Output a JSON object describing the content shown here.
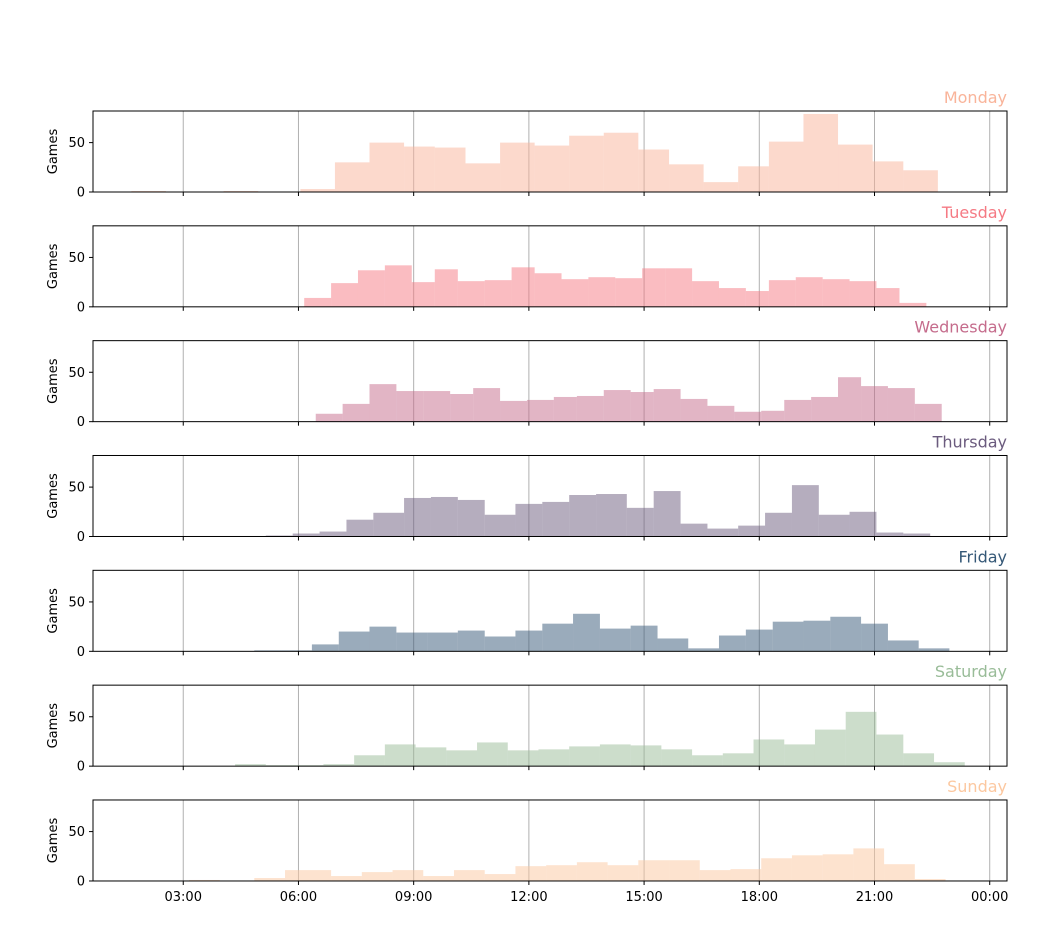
{
  "chart_data": {
    "type": "bar",
    "subtype": "histogram-small-multiples",
    "shared_x_axis": true,
    "x_tick_labels": [
      "03:00",
      "06:00",
      "09:00",
      "12:00",
      "15:00",
      "18:00",
      "21:00",
      "00:00"
    ],
    "x_tick_hours": [
      3,
      6,
      9,
      12,
      15,
      18,
      21,
      24
    ],
    "xlim_hours": [
      0.65,
      24.45
    ],
    "ylabel": "Games",
    "ylim": [
      0,
      82
    ],
    "y_ticks": [
      0,
      50
    ],
    "grid": {
      "x": true,
      "y": false
    },
    "panels": [
      {
        "title": "Monday",
        "color": "#f9b49a",
        "bins": [
          {
            "start": 1.65,
            "end": 2.55,
            "value": 1
          },
          {
            "start": 4.05,
            "end": 4.95,
            "value": 1
          },
          {
            "start": 6.05,
            "end": 6.95,
            "value": 3
          },
          {
            "start": 6.95,
            "end": 7.85,
            "value": 30
          },
          {
            "start": 7.85,
            "end": 8.75,
            "value": 50
          },
          {
            "start": 8.75,
            "end": 9.55,
            "value": 46
          },
          {
            "start": 9.55,
            "end": 10.35,
            "value": 45
          },
          {
            "start": 10.35,
            "end": 11.25,
            "value": 29
          },
          {
            "start": 11.25,
            "end": 12.15,
            "value": 50
          },
          {
            "start": 12.15,
            "end": 13.05,
            "value": 47
          },
          {
            "start": 13.05,
            "end": 13.95,
            "value": 57
          },
          {
            "start": 13.95,
            "end": 14.85,
            "value": 60
          },
          {
            "start": 14.85,
            "end": 15.65,
            "value": 43
          },
          {
            "start": 15.65,
            "end": 16.55,
            "value": 28
          },
          {
            "start": 16.55,
            "end": 17.45,
            "value": 10
          },
          {
            "start": 17.45,
            "end": 18.25,
            "value": 26
          },
          {
            "start": 18.25,
            "end": 19.15,
            "value": 51
          },
          {
            "start": 19.15,
            "end": 20.05,
            "value": 79
          },
          {
            "start": 20.05,
            "end": 20.95,
            "value": 48
          },
          {
            "start": 20.95,
            "end": 21.75,
            "value": 31
          },
          {
            "start": 21.75,
            "end": 22.65,
            "value": 22
          }
        ]
      },
      {
        "title": "Tuesday",
        "color": "#f57a84",
        "bins": [
          {
            "start": 6.15,
            "end": 6.85,
            "value": 9
          },
          {
            "start": 6.85,
            "end": 7.55,
            "value": 24
          },
          {
            "start": 7.55,
            "end": 8.25,
            "value": 37
          },
          {
            "start": 8.25,
            "end": 8.95,
            "value": 42
          },
          {
            "start": 8.95,
            "end": 9.55,
            "value": 25
          },
          {
            "start": 9.55,
            "end": 10.15,
            "value": 38
          },
          {
            "start": 10.15,
            "end": 10.85,
            "value": 26
          },
          {
            "start": 10.85,
            "end": 11.55,
            "value": 27
          },
          {
            "start": 11.55,
            "end": 12.15,
            "value": 40
          },
          {
            "start": 12.15,
            "end": 12.85,
            "value": 34
          },
          {
            "start": 12.85,
            "end": 13.55,
            "value": 28
          },
          {
            "start": 13.55,
            "end": 14.25,
            "value": 30
          },
          {
            "start": 14.25,
            "end": 14.95,
            "value": 29
          },
          {
            "start": 14.95,
            "end": 15.55,
            "value": 39
          },
          {
            "start": 15.55,
            "end": 16.25,
            "value": 39
          },
          {
            "start": 16.25,
            "end": 16.95,
            "value": 26
          },
          {
            "start": 16.95,
            "end": 17.65,
            "value": 19
          },
          {
            "start": 17.65,
            "end": 18.25,
            "value": 16
          },
          {
            "start": 18.25,
            "end": 18.95,
            "value": 27
          },
          {
            "start": 18.95,
            "end": 19.65,
            "value": 30
          },
          {
            "start": 19.65,
            "end": 20.35,
            "value": 28
          },
          {
            "start": 20.35,
            "end": 21.05,
            "value": 26
          },
          {
            "start": 21.05,
            "end": 21.65,
            "value": 19
          },
          {
            "start": 21.65,
            "end": 22.35,
            "value": 4
          }
        ]
      },
      {
        "title": "Wednesday",
        "color": "#c56c8c",
        "bins": [
          {
            "start": 6.45,
            "end": 7.15,
            "value": 8
          },
          {
            "start": 7.15,
            "end": 7.85,
            "value": 18
          },
          {
            "start": 7.85,
            "end": 8.55,
            "value": 38
          },
          {
            "start": 8.55,
            "end": 9.25,
            "value": 31
          },
          {
            "start": 9.25,
            "end": 9.95,
            "value": 31
          },
          {
            "start": 9.95,
            "end": 10.55,
            "value": 28
          },
          {
            "start": 10.55,
            "end": 11.25,
            "value": 34
          },
          {
            "start": 11.25,
            "end": 11.95,
            "value": 21
          },
          {
            "start": 11.95,
            "end": 12.65,
            "value": 22
          },
          {
            "start": 12.65,
            "end": 13.25,
            "value": 25
          },
          {
            "start": 13.25,
            "end": 13.95,
            "value": 26
          },
          {
            "start": 13.95,
            "end": 14.65,
            "value": 32
          },
          {
            "start": 14.65,
            "end": 15.25,
            "value": 30
          },
          {
            "start": 15.25,
            "end": 15.95,
            "value": 33
          },
          {
            "start": 15.95,
            "end": 16.65,
            "value": 23
          },
          {
            "start": 16.65,
            "end": 17.35,
            "value": 16
          },
          {
            "start": 17.35,
            "end": 18.05,
            "value": 10
          },
          {
            "start": 18.05,
            "end": 18.65,
            "value": 11
          },
          {
            "start": 18.65,
            "end": 19.35,
            "value": 22
          },
          {
            "start": 19.35,
            "end": 20.05,
            "value": 25
          },
          {
            "start": 20.05,
            "end": 20.65,
            "value": 45
          },
          {
            "start": 20.65,
            "end": 21.35,
            "value": 36
          },
          {
            "start": 21.35,
            "end": 22.05,
            "value": 34
          },
          {
            "start": 22.05,
            "end": 22.75,
            "value": 18
          }
        ]
      },
      {
        "title": "Thursday",
        "color": "#6b5b7e",
        "bins": [
          {
            "start": 5.15,
            "end": 5.85,
            "value": 1
          },
          {
            "start": 5.85,
            "end": 6.55,
            "value": 3
          },
          {
            "start": 6.55,
            "end": 7.25,
            "value": 5
          },
          {
            "start": 7.25,
            "end": 7.95,
            "value": 17
          },
          {
            "start": 7.95,
            "end": 8.75,
            "value": 24
          },
          {
            "start": 8.75,
            "end": 9.45,
            "value": 39
          },
          {
            "start": 9.45,
            "end": 10.15,
            "value": 40
          },
          {
            "start": 10.15,
            "end": 10.85,
            "value": 37
          },
          {
            "start": 10.85,
            "end": 11.65,
            "value": 22
          },
          {
            "start": 11.65,
            "end": 12.35,
            "value": 33
          },
          {
            "start": 12.35,
            "end": 13.05,
            "value": 35
          },
          {
            "start": 13.05,
            "end": 13.75,
            "value": 42
          },
          {
            "start": 13.75,
            "end": 14.55,
            "value": 43
          },
          {
            "start": 14.55,
            "end": 15.25,
            "value": 29
          },
          {
            "start": 15.25,
            "end": 15.95,
            "value": 46
          },
          {
            "start": 15.95,
            "end": 16.65,
            "value": 13
          },
          {
            "start": 16.65,
            "end": 17.45,
            "value": 8
          },
          {
            "start": 17.45,
            "end": 18.15,
            "value": 11
          },
          {
            "start": 18.15,
            "end": 18.85,
            "value": 24
          },
          {
            "start": 18.85,
            "end": 19.55,
            "value": 52
          },
          {
            "start": 19.55,
            "end": 20.35,
            "value": 22
          },
          {
            "start": 20.35,
            "end": 21.05,
            "value": 25
          },
          {
            "start": 21.05,
            "end": 21.75,
            "value": 4
          },
          {
            "start": 21.75,
            "end": 22.45,
            "value": 3
          }
        ]
      },
      {
        "title": "Friday",
        "color": "#355877",
        "bins": [
          {
            "start": 4.85,
            "end": 5.55,
            "value": 1
          },
          {
            "start": 5.55,
            "end": 6.35,
            "value": 1
          },
          {
            "start": 6.35,
            "end": 7.05,
            "value": 7
          },
          {
            "start": 7.05,
            "end": 7.85,
            "value": 20
          },
          {
            "start": 7.85,
            "end": 8.55,
            "value": 25
          },
          {
            "start": 8.55,
            "end": 9.35,
            "value": 19
          },
          {
            "start": 9.35,
            "end": 10.15,
            "value": 19
          },
          {
            "start": 10.15,
            "end": 10.85,
            "value": 21
          },
          {
            "start": 10.85,
            "end": 11.65,
            "value": 15
          },
          {
            "start": 11.65,
            "end": 12.35,
            "value": 21
          },
          {
            "start": 12.35,
            "end": 13.15,
            "value": 28
          },
          {
            "start": 13.15,
            "end": 13.85,
            "value": 38
          },
          {
            "start": 13.85,
            "end": 14.65,
            "value": 23
          },
          {
            "start": 14.65,
            "end": 15.35,
            "value": 26
          },
          {
            "start": 15.35,
            "end": 16.15,
            "value": 13
          },
          {
            "start": 16.15,
            "end": 16.95,
            "value": 3
          },
          {
            "start": 16.95,
            "end": 17.65,
            "value": 16
          },
          {
            "start": 17.65,
            "end": 18.35,
            "value": 22
          },
          {
            "start": 18.35,
            "end": 19.15,
            "value": 30
          },
          {
            "start": 19.15,
            "end": 19.85,
            "value": 31
          },
          {
            "start": 19.85,
            "end": 20.65,
            "value": 35
          },
          {
            "start": 20.65,
            "end": 21.35,
            "value": 28
          },
          {
            "start": 21.35,
            "end": 22.15,
            "value": 11
          },
          {
            "start": 22.15,
            "end": 22.95,
            "value": 3
          }
        ]
      },
      {
        "title": "Saturday",
        "color": "#99bc98",
        "bins": [
          {
            "start": 4.35,
            "end": 5.15,
            "value": 2
          },
          {
            "start": 5.15,
            "end": 5.85,
            "value": 1
          },
          {
            "start": 5.85,
            "end": 6.65,
            "value": 1
          },
          {
            "start": 6.65,
            "end": 7.45,
            "value": 2
          },
          {
            "start": 7.45,
            "end": 8.25,
            "value": 11
          },
          {
            "start": 8.25,
            "end": 9.05,
            "value": 22
          },
          {
            "start": 9.05,
            "end": 9.85,
            "value": 19
          },
          {
            "start": 9.85,
            "end": 10.65,
            "value": 16
          },
          {
            "start": 10.65,
            "end": 11.45,
            "value": 24
          },
          {
            "start": 11.45,
            "end": 12.25,
            "value": 16
          },
          {
            "start": 12.25,
            "end": 13.05,
            "value": 17
          },
          {
            "start": 13.05,
            "end": 13.85,
            "value": 20
          },
          {
            "start": 13.85,
            "end": 14.65,
            "value": 22
          },
          {
            "start": 14.65,
            "end": 15.45,
            "value": 21
          },
          {
            "start": 15.45,
            "end": 16.25,
            "value": 17
          },
          {
            "start": 16.25,
            "end": 17.05,
            "value": 11
          },
          {
            "start": 17.05,
            "end": 17.85,
            "value": 13
          },
          {
            "start": 17.85,
            "end": 18.65,
            "value": 27
          },
          {
            "start": 18.65,
            "end": 19.45,
            "value": 22
          },
          {
            "start": 19.45,
            "end": 20.25,
            "value": 37
          },
          {
            "start": 20.25,
            "end": 21.05,
            "value": 55
          },
          {
            "start": 21.05,
            "end": 21.75,
            "value": 32
          },
          {
            "start": 21.75,
            "end": 22.55,
            "value": 13
          },
          {
            "start": 22.55,
            "end": 23.35,
            "value": 4
          }
        ]
      },
      {
        "title": "Sunday",
        "color": "#fcc8a0",
        "bins": [
          {
            "start": 3.15,
            "end": 3.95,
            "value": 1
          },
          {
            "start": 4.85,
            "end": 5.65,
            "value": 3
          },
          {
            "start": 5.65,
            "end": 6.85,
            "value": 11
          },
          {
            "start": 6.85,
            "end": 7.65,
            "value": 5
          },
          {
            "start": 7.65,
            "end": 8.45,
            "value": 9
          },
          {
            "start": 8.45,
            "end": 9.25,
            "value": 11
          },
          {
            "start": 9.25,
            "end": 10.05,
            "value": 5
          },
          {
            "start": 10.05,
            "end": 10.85,
            "value": 11
          },
          {
            "start": 10.85,
            "end": 11.65,
            "value": 7
          },
          {
            "start": 11.65,
            "end": 12.45,
            "value": 15
          },
          {
            "start": 12.45,
            "end": 13.25,
            "value": 16
          },
          {
            "start": 13.25,
            "end": 14.05,
            "value": 19
          },
          {
            "start": 14.05,
            "end": 14.85,
            "value": 16
          },
          {
            "start": 14.85,
            "end": 15.65,
            "value": 21
          },
          {
            "start": 15.65,
            "end": 16.45,
            "value": 21
          },
          {
            "start": 16.45,
            "end": 17.25,
            "value": 11
          },
          {
            "start": 17.25,
            "end": 18.05,
            "value": 12
          },
          {
            "start": 18.05,
            "end": 18.85,
            "value": 23
          },
          {
            "start": 18.85,
            "end": 19.65,
            "value": 26
          },
          {
            "start": 19.65,
            "end": 20.45,
            "value": 27
          },
          {
            "start": 20.45,
            "end": 21.25,
            "value": 33
          },
          {
            "start": 21.25,
            "end": 22.05,
            "value": 17
          },
          {
            "start": 22.05,
            "end": 22.85,
            "value": 2
          }
        ]
      }
    ]
  }
}
